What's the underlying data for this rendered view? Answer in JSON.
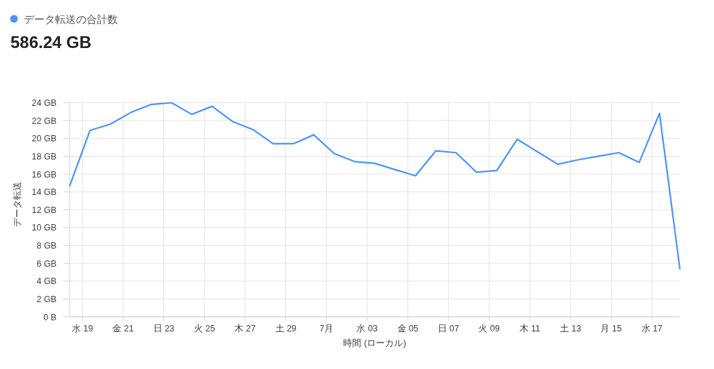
{
  "chart_data": {
    "type": "line",
    "annotations": [
      "586.24 GB"
    ],
    "xlabel": "時間 (ローカル)",
    "ylabel": "データ転送",
    "legend": "top left",
    "grid": true,
    "x": [
      "--06-18T09:00",
      "--06-19T09:00",
      "--06-20T09:00",
      "--06-21T09:00",
      "--06-22T09:00",
      "--06-23T09:00",
      "--06-24T09:00",
      "--06-25T09:00",
      "--06-26T09:00",
      "--06-27T09:00",
      "--06-28T09:00",
      "--06-29T09:00",
      "--06-30T09:00",
      "--07-01T09:00",
      "--07-02T09:00",
      "--07-03T09:00",
      "--07-04T09:00",
      "--07-05T09:00",
      "--07-06T09:00",
      "--07-07T09:00",
      "--07-08T09:00",
      "--07-09T09:00",
      "--07-10T09:00",
      "--07-11T09:00",
      "--07-12T09:00",
      "--07-13T09:00",
      "--07-14T09:00",
      "--07-15T09:00",
      "--07-16T09:00",
      "--07-17T09:00",
      "--07-18T09:00"
    ],
    "xlim": [
      "--06-18T09:00",
      "--07-18T09:00"
    ],
    "xticks": [
      {
        "value": "--06-19",
        "label": "水 19"
      },
      {
        "value": "--06-21",
        "label": "金 21"
      },
      {
        "value": "--06-23",
        "label": "日 23"
      },
      {
        "value": "--06-25",
        "label": "火 25"
      },
      {
        "value": "--06-27",
        "label": "木 27"
      },
      {
        "value": "--06-29",
        "label": "土 29"
      },
      {
        "value": "--07-01",
        "label": "7月"
      },
      {
        "value": "--07-03",
        "label": "水 03"
      },
      {
        "value": "--07-05",
        "label": "金 05"
      },
      {
        "value": "--07-07",
        "label": "日 07"
      },
      {
        "value": "--07-09",
        "label": "火 09"
      },
      {
        "value": "--07-11",
        "label": "木 11"
      },
      {
        "value": "--07-13",
        "label": "土 13"
      },
      {
        "value": "--07-15",
        "label": "月 15"
      },
      {
        "value": "--07-17",
        "label": "水 17"
      }
    ],
    "ylim": [
      0,
      24
    ],
    "yticks": [
      {
        "value": 0,
        "label": "0 B"
      },
      {
        "value": 2,
        "label": "2 GB"
      },
      {
        "value": 4,
        "label": "4 GB"
      },
      {
        "value": 6,
        "label": "6 GB"
      },
      {
        "value": 8,
        "label": "8 GB"
      },
      {
        "value": 10,
        "label": "10 GB"
      },
      {
        "value": 12,
        "label": "12 GB"
      },
      {
        "value": 14,
        "label": "14 GB"
      },
      {
        "value": 16,
        "label": "16 GB"
      },
      {
        "value": 18,
        "label": "18 GB"
      },
      {
        "value": 20,
        "label": "20 GB"
      },
      {
        "value": 22,
        "label": "22 GB"
      },
      {
        "value": 24,
        "label": "24 GB"
      }
    ],
    "series": [
      {
        "name": "データ転送の合計数",
        "color": "#4a93f8",
        "values": [
          14.7,
          20.9,
          21.6,
          22.9,
          23.8,
          24.0,
          22.7,
          23.6,
          21.9,
          21.0,
          19.4,
          19.4,
          20.4,
          18.3,
          17.4,
          17.2,
          16.5,
          15.8,
          18.6,
          18.4,
          16.2,
          16.4,
          19.9,
          18.5,
          17.1,
          17.6,
          18.0,
          18.4,
          17.3,
          22.8,
          5.4
        ]
      }
    ]
  }
}
